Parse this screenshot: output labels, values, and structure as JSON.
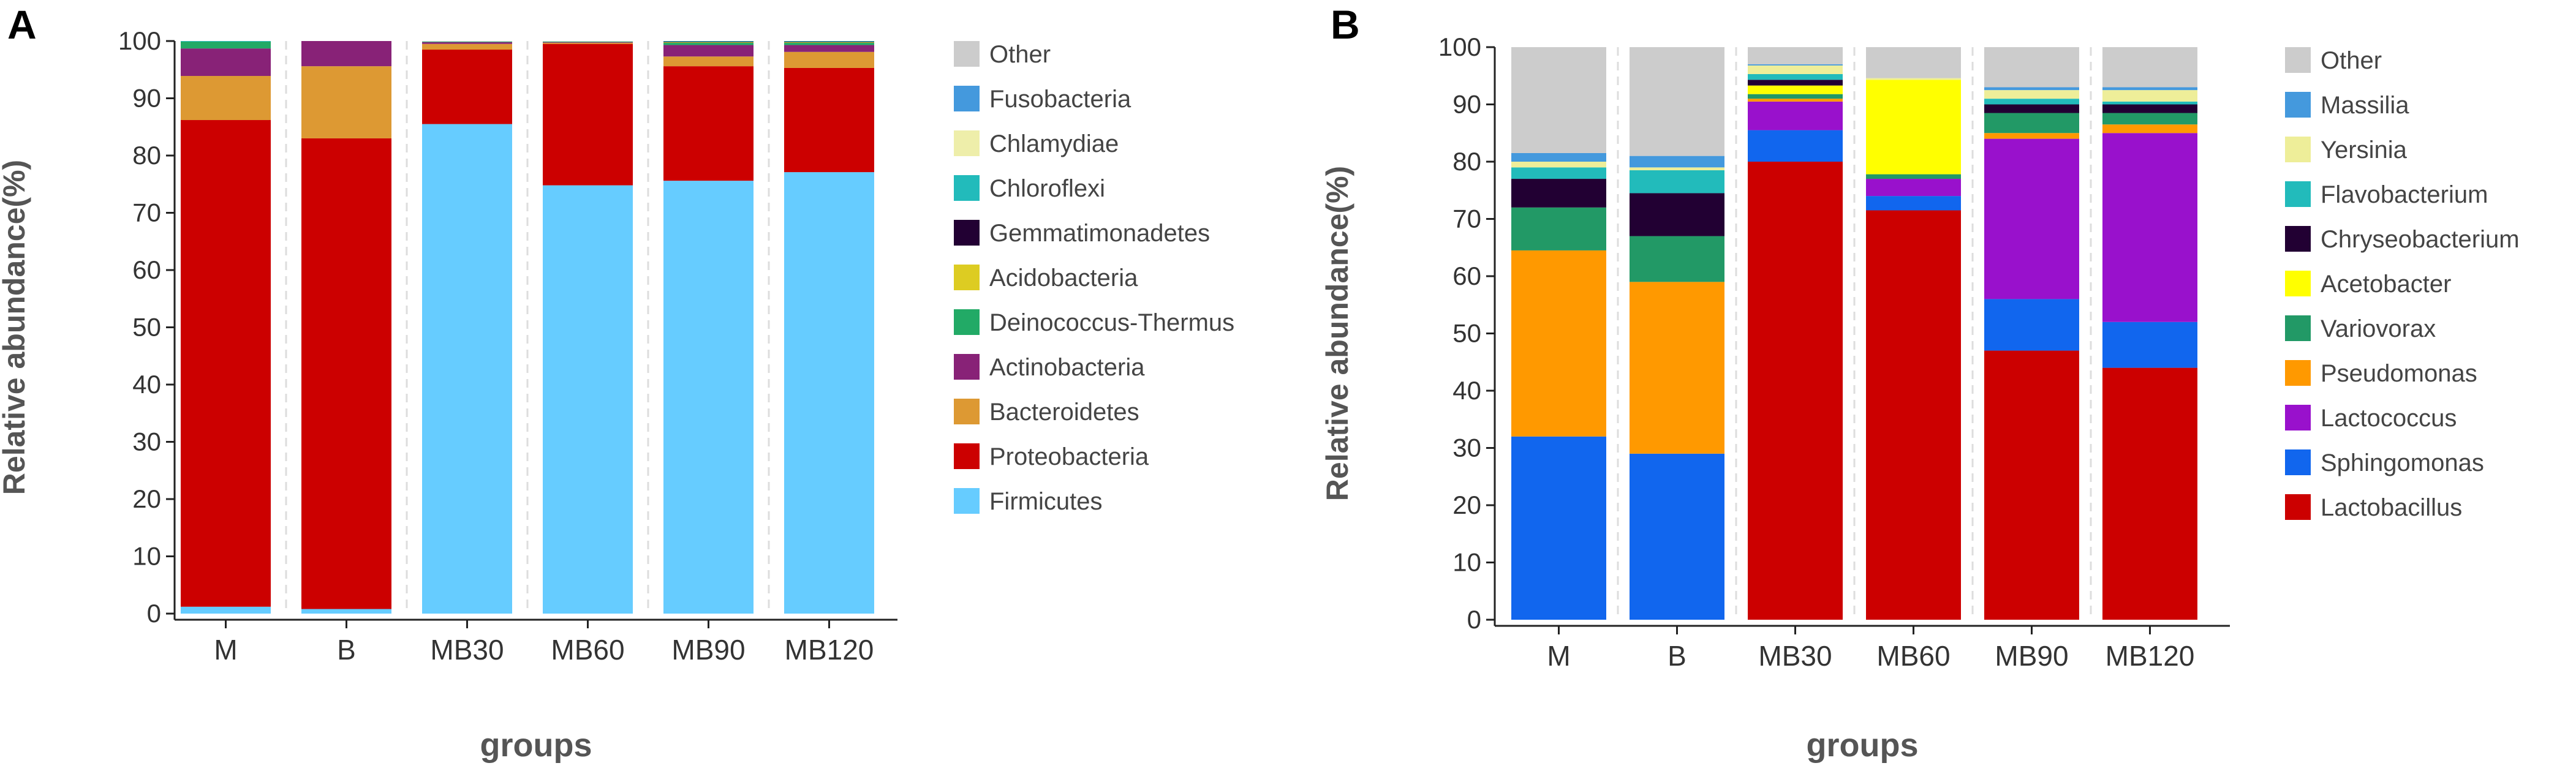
{
  "chart_data": [
    {
      "panel_label": "A",
      "type": "bar",
      "stacked": true,
      "xlabel": "groups",
      "ylabel": "Relative abundance(%)",
      "ylim": [
        0,
        100
      ],
      "yticks": [
        0,
        10,
        20,
        30,
        40,
        50,
        60,
        70,
        80,
        90,
        100
      ],
      "grid": false,
      "legend_position": "right",
      "categories": [
        "M",
        "B",
        "MB30",
        "MB60",
        "MB90",
        "MB120"
      ],
      "legend_order": [
        "Other",
        "Fusobacteria",
        "Chlamydiae",
        "Chloroflexi",
        "Gemmatimonadetes",
        "Acidobacteria",
        "Deinococcus-Thermus",
        "Actinobacteria",
        "Bacteroidetes",
        "Proteobacteria",
        "Firmicutes"
      ],
      "series": [
        {
          "name": "Firmicutes",
          "color": "#66ccff",
          "values": [
            1.2,
            0.8,
            85.5,
            74.8,
            75.6,
            77.1
          ]
        },
        {
          "name": "Proteobacteria",
          "color": "#cc0000",
          "values": [
            85.0,
            82.2,
            13.0,
            24.7,
            20.0,
            18.2
          ]
        },
        {
          "name": "Bacteroidetes",
          "color": "#dd9933",
          "values": [
            7.7,
            12.6,
            1.0,
            0.2,
            1.7,
            2.8
          ]
        },
        {
          "name": "Actinobacteria",
          "color": "#882277",
          "values": [
            4.8,
            4.4,
            0.3,
            0.1,
            2.0,
            1.2
          ]
        },
        {
          "name": "Deinococcus-Thermus",
          "color": "#22aa66",
          "values": [
            1.2,
            0.0,
            0.1,
            0.1,
            0.4,
            0.4
          ]
        },
        {
          "name": "Acidobacteria",
          "color": "#ddcc22",
          "values": [
            0.0,
            0.0,
            0.0,
            0.0,
            0.1,
            0.1
          ]
        },
        {
          "name": "Gemmatimonadetes",
          "color": "#220033",
          "values": [
            0.0,
            0.0,
            0.0,
            0.0,
            0.1,
            0.1
          ]
        },
        {
          "name": "Chloroflexi",
          "color": "#22bbbb",
          "values": [
            0.1,
            0.0,
            0.0,
            0.0,
            0.1,
            0.1
          ]
        },
        {
          "name": "Chlamydiae",
          "color": "#eeeeaa",
          "values": [
            0.0,
            0.0,
            0.0,
            0.0,
            0.0,
            0.0
          ]
        },
        {
          "name": "Fusobacteria",
          "color": "#4499dd",
          "values": [
            0.0,
            0.0,
            0.0,
            0.0,
            0.0,
            0.0
          ]
        },
        {
          "name": "Other",
          "color": "#cccccc",
          "values": [
            0.0,
            0.0,
            0.1,
            0.1,
            0.0,
            0.0
          ]
        }
      ]
    },
    {
      "panel_label": "B",
      "type": "bar",
      "stacked": true,
      "xlabel": "groups",
      "ylabel": "Relative abundance(%)",
      "ylim": [
        0,
        100
      ],
      "yticks": [
        0,
        10,
        20,
        30,
        40,
        50,
        60,
        70,
        80,
        90,
        100
      ],
      "grid": false,
      "legend_position": "right",
      "categories": [
        "M",
        "B",
        "MB30",
        "MB60",
        "MB90",
        "MB120"
      ],
      "legend_order": [
        "Other",
        "Massilia",
        "Yersinia",
        "Flavobacterium",
        "Chryseobacterium",
        "Acetobacter",
        "Variovorax",
        "Pseudomonas",
        "Lactococcus",
        "Sphingomonas",
        "Lactobacillus"
      ],
      "series": [
        {
          "name": "Lactobacillus",
          "color": "#cc0000",
          "values": [
            0.0,
            0.0,
            80.0,
            71.5,
            47.0,
            44.0
          ]
        },
        {
          "name": "Sphingomonas",
          "color": "#1166ee",
          "values": [
            32.0,
            29.0,
            5.5,
            2.5,
            9.0,
            8.0
          ]
        },
        {
          "name": "Lactococcus",
          "color": "#9911cc",
          "values": [
            0.0,
            0.0,
            5.0,
            3.0,
            28.0,
            33.0
          ]
        },
        {
          "name": "Pseudomonas",
          "color": "#ff9900",
          "values": [
            32.5,
            30.0,
            0.5,
            0.0,
            1.0,
            1.5
          ]
        },
        {
          "name": "Variovorax",
          "color": "#229966",
          "values": [
            7.5,
            8.0,
            0.8,
            0.8,
            3.5,
            2.0
          ]
        },
        {
          "name": "Acetobacter",
          "color": "#ffff00",
          "values": [
            0.0,
            0.0,
            1.5,
            16.5,
            0.0,
            0.0
          ]
        },
        {
          "name": "Chryseobacterium",
          "color": "#220033",
          "values": [
            5.0,
            7.5,
            1.0,
            0.0,
            1.5,
            1.5
          ]
        },
        {
          "name": "Flavobacterium",
          "color": "#22bbbb",
          "values": [
            2.0,
            4.0,
            1.0,
            0.0,
            1.0,
            0.5
          ]
        },
        {
          "name": "Yersinia",
          "color": "#eeee99",
          "values": [
            1.0,
            0.5,
            1.5,
            0.3,
            1.5,
            2.0
          ]
        },
        {
          "name": "Massilia",
          "color": "#4499dd",
          "values": [
            1.5,
            2.0,
            0.2,
            0.0,
            0.5,
            0.5
          ]
        },
        {
          "name": "Other",
          "color": "#cccccc",
          "values": [
            18.5,
            19.0,
            3.0,
            5.4,
            7.0,
            7.0
          ]
        }
      ]
    }
  ]
}
